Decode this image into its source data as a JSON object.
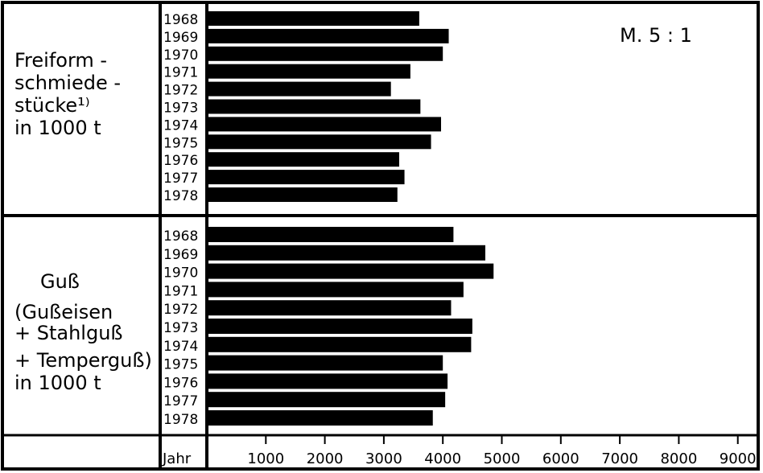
{
  "chart_data": {
    "type": "bar",
    "orientation": "horizontal",
    "scale_note": "M.  5 : 1",
    "x_axis_label": "Jahr",
    "x_ticks": [
      1000,
      2000,
      3000,
      4000,
      5000,
      6000,
      7000,
      8000,
      9000
    ],
    "xlim": [
      0,
      9000
    ],
    "grid": false,
    "panels": [
      {
        "label_lines": [
          "Freiform -",
          "schmiede -",
          "stücke¹⁾",
          "in 1000 t"
        ],
        "categories": [
          "1968",
          "1969",
          "1970",
          "1971",
          "1972",
          "1973",
          "1974",
          "1975",
          "1976",
          "1977",
          "1978"
        ],
        "values": [
          3600,
          4100,
          4000,
          3450,
          3120,
          3620,
          3970,
          3800,
          3260,
          3350,
          3230
        ]
      },
      {
        "label_lines": [
          "Guß",
          "(Gußeisen",
          "+ Stahlguß",
          "+ Temperguß)",
          "in 1000 t"
        ],
        "categories": [
          "1968",
          "1969",
          "1970",
          "1971",
          "1972",
          "1973",
          "1974",
          "1975",
          "1976",
          "1977",
          "1978"
        ],
        "values": [
          4180,
          4720,
          4860,
          4350,
          4140,
          4500,
          4480,
          4000,
          4080,
          4040,
          3830
        ]
      }
    ]
  }
}
